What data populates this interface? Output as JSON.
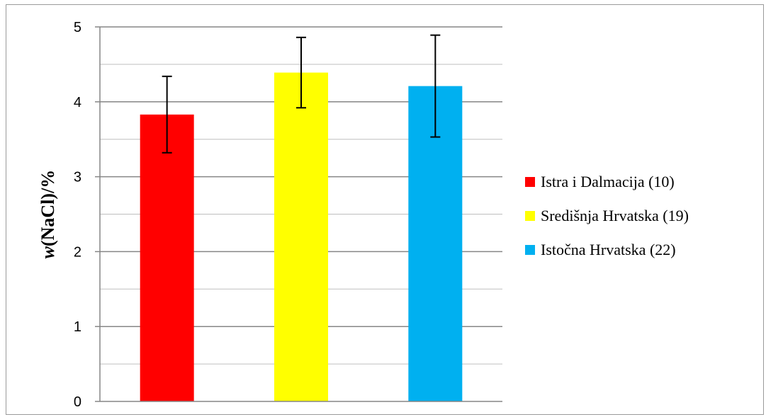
{
  "chart_data": {
    "type": "bar",
    "categories": [
      "Istra i Dalmacija (10)",
      "Središnja Hrvatska (19)",
      "Istočna Hrvatska (22)"
    ],
    "series": [
      {
        "values": [
          3.83,
          4.39,
          4.21
        ],
        "error": [
          0.51,
          0.47,
          0.68
        ],
        "colors": [
          "#ff0000",
          "#ffff00",
          "#00b0f0"
        ]
      }
    ],
    "ylabel_prefix": "w",
    "ylabel_suffix": "(NaCl)/%",
    "ylim": [
      0,
      5
    ],
    "yticks": [
      0,
      1,
      2,
      3,
      4,
      5
    ],
    "ytick_labels": [
      "0",
      "1",
      "2",
      "3",
      "4",
      "5"
    ],
    "minor_gridlines": true,
    "grid": true,
    "legend": "right"
  }
}
